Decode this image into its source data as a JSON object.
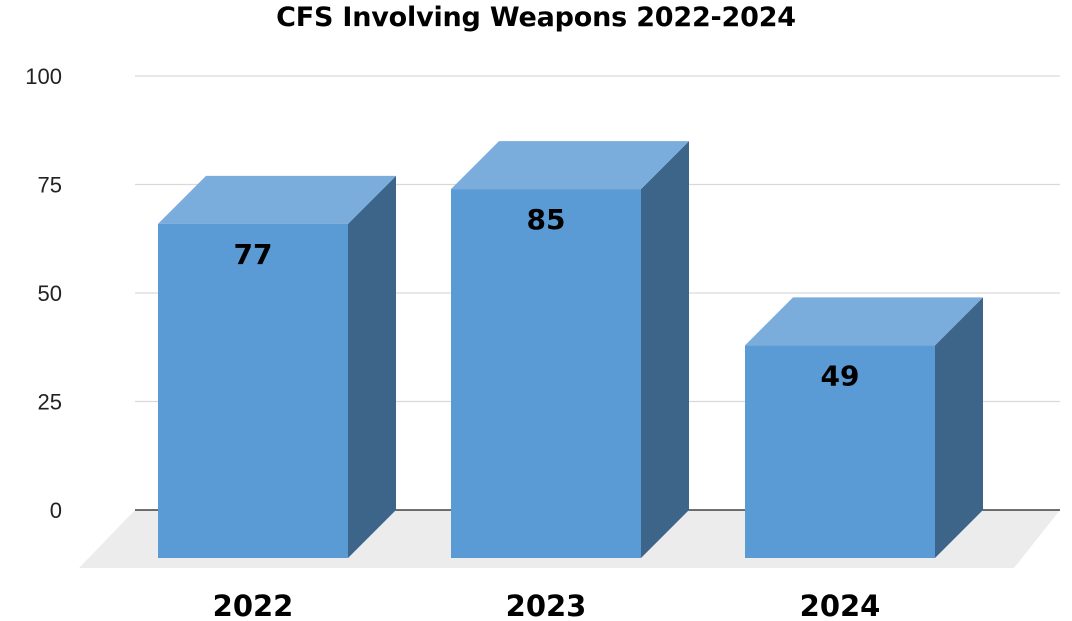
{
  "chart_data": {
    "type": "bar",
    "title": "CFS Involving Weapons 2022-2024",
    "categories": [
      "2022",
      "2023",
      "2024"
    ],
    "values": [
      77,
      85,
      49
    ],
    "data_labels": [
      "77",
      "85",
      "49"
    ],
    "ylim": [
      0,
      100
    ],
    "yticks": [
      "0",
      "25",
      "50",
      "75",
      "100"
    ],
    "xlabel": "",
    "ylabel": "",
    "grid": true,
    "legend": "none",
    "style": "3d-column",
    "colors": {
      "bar_front": "#5b9bd5",
      "bar_top": "#7aacdc",
      "bar_side": "#3d6589",
      "floor": "#ececec",
      "gridline": "#d9d9d9",
      "axis": "#404040"
    }
  }
}
